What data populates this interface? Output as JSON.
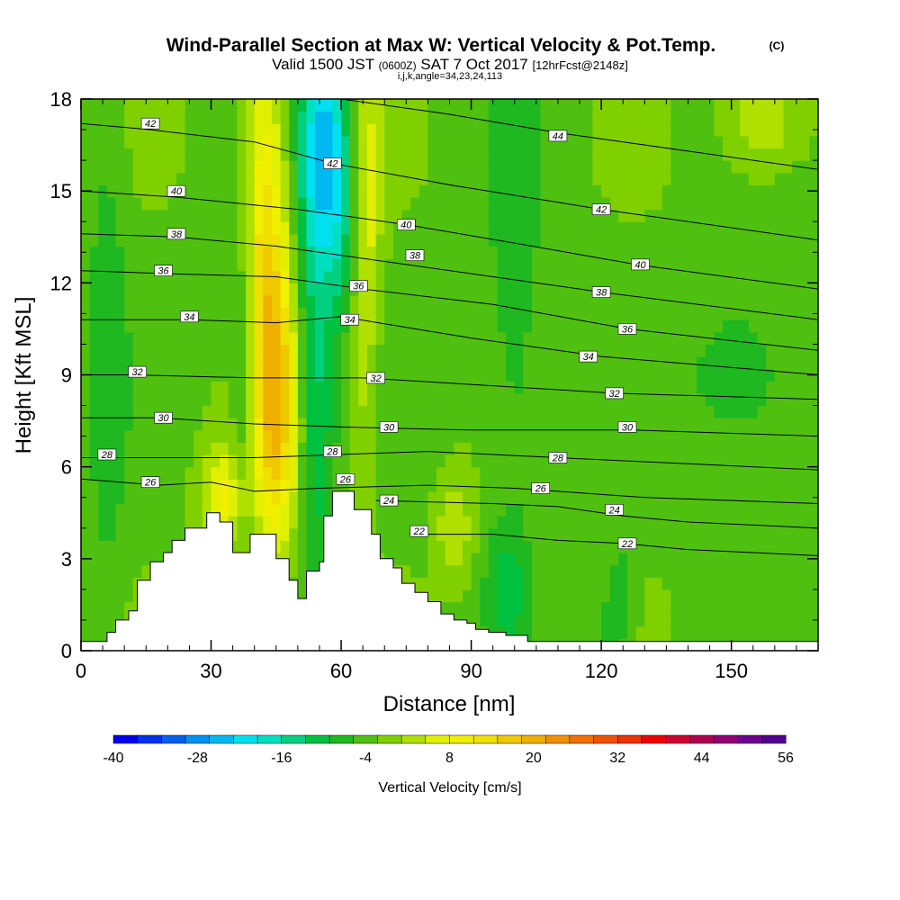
{
  "chart_data": {
    "type": "heatmap",
    "title": "Wind-Parallel Section at Max W: Vertical Velocity & Pot.Temp.",
    "copyright": "(C)",
    "subtitle": {
      "valid": "Valid 1500 JST",
      "utc": "(0600Z)",
      "date": "SAT 7 Oct 2017",
      "forecast": "[12hrFcst@2148z]"
    },
    "params": "i,j,k,angle=34,23,24,113",
    "xlabel": "Distance [nm]",
    "ylabel": "Height [Kft MSL]",
    "xlim": [
      0,
      170
    ],
    "ylim": [
      0,
      18
    ],
    "xticks": [
      0,
      30,
      60,
      90,
      120,
      150
    ],
    "yticks": [
      0,
      3,
      6,
      9,
      12,
      15,
      18
    ],
    "colorbar": {
      "label": "Vertical Velocity [cm/s]",
      "ticks": [
        -40,
        -28,
        -16,
        -4,
        8,
        20,
        32,
        44,
        56
      ],
      "min": -40,
      "max": 56,
      "step": 4,
      "colors": [
        "#0000f0",
        "#0030f0",
        "#0060f0",
        "#0090f0",
        "#00b8f0",
        "#00e0f0",
        "#00e0c0",
        "#00d080",
        "#00c040",
        "#20b820",
        "#50c010",
        "#80d000",
        "#b0e000",
        "#e0f000",
        "#f0f000",
        "#f0e000",
        "#f0c800",
        "#f0b000",
        "#f09000",
        "#f07000",
        "#f05000",
        "#f03000",
        "#f00000",
        "#d00030",
        "#b00050",
        "#900070",
        "#700090",
        "#500090"
      ]
    },
    "terrain": {
      "x": [
        0,
        6,
        6,
        8,
        8,
        11,
        11,
        13,
        13,
        16,
        16,
        19,
        19,
        21,
        21,
        24,
        24,
        29,
        29,
        32,
        32,
        35,
        35,
        39,
        39,
        45,
        45,
        48,
        48,
        50,
        50,
        52,
        52,
        55,
        55,
        56,
        56,
        58,
        58,
        63,
        63,
        67,
        67,
        69,
        69,
        72,
        72,
        74,
        74,
        77,
        77,
        80,
        80,
        83,
        83,
        86,
        86,
        89,
        89,
        91,
        91,
        94,
        94,
        98,
        98,
        103,
        103,
        106,
        106,
        170
      ],
      "y": [
        0.3,
        0.3,
        0.6,
        0.6,
        1.0,
        1.0,
        1.3,
        1.3,
        2.3,
        2.3,
        2.9,
        2.9,
        3.2,
        3.2,
        3.6,
        3.6,
        4.0,
        4.0,
        4.5,
        4.5,
        4.2,
        4.2,
        3.2,
        3.2,
        3.8,
        3.8,
        3.0,
        3.0,
        2.3,
        2.3,
        1.7,
        1.7,
        2.6,
        2.6,
        2.9,
        2.9,
        4.4,
        4.4,
        5.2,
        5.2,
        4.6,
        4.6,
        3.8,
        3.8,
        3.0,
        3.0,
        2.7,
        2.7,
        2.2,
        2.2,
        1.9,
        1.9,
        1.6,
        1.6,
        1.2,
        1.2,
        1.0,
        1.0,
        0.9,
        0.9,
        0.7,
        0.7,
        0.6,
        0.6,
        0.5,
        0.5,
        0.3,
        0.3,
        0.3,
        0.3
      ]
    },
    "w_features": [
      {
        "x": 42,
        "y": 12.5,
        "sx": 4,
        "sy": 5.5,
        "amp": 22
      },
      {
        "x": 46,
        "y": 7.5,
        "sx": 3.5,
        "sy": 3,
        "amp": 16
      },
      {
        "x": 33,
        "y": 5.0,
        "sx": 4,
        "sy": 1.3,
        "amp": 14
      },
      {
        "x": 66,
        "y": 15.5,
        "sx": 2.5,
        "sy": 3,
        "amp": 10
      },
      {
        "x": 65,
        "y": 9.5,
        "sx": 2.5,
        "sy": 3,
        "amp": 7
      },
      {
        "x": 86,
        "y": 4.0,
        "sx": 3,
        "sy": 1.2,
        "amp": 9
      },
      {
        "x": 121,
        "y": 2.0,
        "sx": 2,
        "sy": 1.2,
        "amp": 12
      },
      {
        "x": 157,
        "y": 17.3,
        "sx": 6,
        "sy": 1.2,
        "amp": 10
      },
      {
        "x": 56,
        "y": 16.5,
        "sx": 4,
        "sy": 2.5,
        "amp": -22
      },
      {
        "x": 54,
        "y": 9.0,
        "sx": 3,
        "sy": 5,
        "amp": -12
      },
      {
        "x": 38,
        "y": 9.5,
        "sx": 2.5,
        "sy": 5,
        "amp": -12
      },
      {
        "x": 60,
        "y": 13.5,
        "sx": 3,
        "sy": 2.5,
        "amp": -8
      },
      {
        "x": 152,
        "y": 9.0,
        "sx": 7,
        "sy": 1.5,
        "amp": -8
      },
      {
        "x": 122,
        "y": 1.6,
        "sx": 3,
        "sy": 1.3,
        "amp": -16
      },
      {
        "x": 98,
        "y": 2.0,
        "sx": 3,
        "sy": 1.3,
        "amp": -8
      },
      {
        "x": 6,
        "y": 10,
        "sx": 3,
        "sy": 6,
        "amp": -6
      },
      {
        "x": 100,
        "y": 12,
        "sx": 4,
        "sy": 6,
        "amp": -6
      }
    ],
    "isentropes": {
      "levels": [
        22,
        24,
        26,
        28,
        30,
        32,
        34,
        36,
        38,
        40,
        42,
        44
      ],
      "lines": [
        {
          "level": 22,
          "points": [
            [
              78,
              3.8
            ],
            [
              95,
              3.8
            ],
            [
              110,
              3.6
            ],
            [
              125,
              3.5
            ],
            [
              140,
              3.3
            ],
            [
              170,
              3.1
            ]
          ]
        },
        {
          "level": 24,
          "points": [
            [
              68,
              4.9
            ],
            [
              95,
              4.8
            ],
            [
              110,
              4.7
            ],
            [
              125,
              4.4
            ],
            [
              140,
              4.2
            ],
            [
              170,
              4.0
            ]
          ]
        },
        {
          "level": 26,
          "points": [
            [
              0,
              5.6
            ],
            [
              18,
              5.4
            ],
            [
              30,
              5.5
            ],
            [
              40,
              5.2
            ],
            [
              55,
              5.3
            ],
            [
              80,
              5.4
            ],
            [
              100,
              5.3
            ],
            [
              130,
              5.0
            ],
            [
              170,
              4.8
            ]
          ]
        },
        {
          "level": 28,
          "points": [
            [
              0,
              6.3
            ],
            [
              20,
              6.3
            ],
            [
              40,
              6.3
            ],
            [
              60,
              6.4
            ],
            [
              80,
              6.5
            ],
            [
              110,
              6.3
            ],
            [
              140,
              6.1
            ],
            [
              170,
              5.9
            ]
          ]
        },
        {
          "level": 30,
          "points": [
            [
              0,
              7.6
            ],
            [
              18,
              7.6
            ],
            [
              40,
              7.4
            ],
            [
              60,
              7.3
            ],
            [
              90,
              7.2
            ],
            [
              127,
              7.2
            ],
            [
              170,
              7.0
            ]
          ]
        },
        {
          "level": 32,
          "points": [
            [
              0,
              9.0
            ],
            [
              12,
              9.0
            ],
            [
              40,
              8.9
            ],
            [
              65,
              8.9
            ],
            [
              100,
              8.6
            ],
            [
              123,
              8.4
            ],
            [
              170,
              8.2
            ]
          ]
        },
        {
          "level": 34,
          "points": [
            [
              0,
              10.8
            ],
            [
              25,
              10.8
            ],
            [
              45,
              10.7
            ],
            [
              60,
              10.9
            ],
            [
              90,
              10.2
            ],
            [
              120,
              9.6
            ],
            [
              170,
              9.0
            ]
          ]
        },
        {
          "level": 36,
          "points": [
            [
              0,
              12.4
            ],
            [
              20,
              12.3
            ],
            [
              45,
              12.2
            ],
            [
              65,
              11.8
            ],
            [
              95,
              11.3
            ],
            [
              126,
              10.5
            ],
            [
              170,
              9.8
            ]
          ]
        },
        {
          "level": 38,
          "points": [
            [
              0,
              13.6
            ],
            [
              22,
              13.5
            ],
            [
              45,
              13.2
            ],
            [
              70,
              12.7
            ],
            [
              95,
              12.2
            ],
            [
              120,
              11.7
            ],
            [
              170,
              10.8
            ]
          ]
        },
        {
          "level": 40,
          "points": [
            [
              0,
              15.0
            ],
            [
              22,
              14.8
            ],
            [
              50,
              14.4
            ],
            [
              75,
              13.9
            ],
            [
              100,
              13.3
            ],
            [
              128,
              12.6
            ],
            [
              170,
              11.8
            ]
          ]
        },
        {
          "level": 42,
          "points": [
            [
              0,
              17.2
            ],
            [
              16,
              17.0
            ],
            [
              40,
              16.6
            ],
            [
              58,
              15.9
            ],
            [
              85,
              15.2
            ],
            [
              120,
              14.4
            ],
            [
              170,
              13.4
            ]
          ]
        },
        {
          "level": 44,
          "points": [
            [
              60,
              18.0
            ],
            [
              85,
              17.5
            ],
            [
              110,
              16.9
            ],
            [
              140,
              16.3
            ],
            [
              170,
              15.7
            ]
          ]
        }
      ],
      "labels": [
        {
          "text": "42",
          "x": 16,
          "y": 17.2
        },
        {
          "text": "42",
          "x": 58,
          "y": 15.9
        },
        {
          "text": "44",
          "x": 110,
          "y": 16.8
        },
        {
          "text": "40",
          "x": 22,
          "y": 15.0
        },
        {
          "text": "42",
          "x": 120,
          "y": 14.4
        },
        {
          "text": "38",
          "x": 22,
          "y": 13.6
        },
        {
          "text": "40",
          "x": 75,
          "y": 13.9
        },
        {
          "text": "38",
          "x": 77,
          "y": 12.9
        },
        {
          "text": "36",
          "x": 19,
          "y": 12.4
        },
        {
          "text": "40",
          "x": 129,
          "y": 12.6
        },
        {
          "text": "36",
          "x": 64,
          "y": 11.9
        },
        {
          "text": "38",
          "x": 120,
          "y": 11.7
        },
        {
          "text": "34",
          "x": 25,
          "y": 10.9
        },
        {
          "text": "34",
          "x": 62,
          "y": 10.8
        },
        {
          "text": "36",
          "x": 126,
          "y": 10.5
        },
        {
          "text": "34",
          "x": 117,
          "y": 9.6
        },
        {
          "text": "32",
          "x": 13,
          "y": 9.1
        },
        {
          "text": "32",
          "x": 68,
          "y": 8.9
        },
        {
          "text": "32",
          "x": 123,
          "y": 8.4
        },
        {
          "text": "30",
          "x": 19,
          "y": 7.6
        },
        {
          "text": "30",
          "x": 71,
          "y": 7.3
        },
        {
          "text": "30",
          "x": 126,
          "y": 7.3
        },
        {
          "text": "28",
          "x": 6,
          "y": 6.4
        },
        {
          "text": "28",
          "x": 58,
          "y": 6.5
        },
        {
          "text": "28",
          "x": 110,
          "y": 6.3
        },
        {
          "text": "26",
          "x": 16,
          "y": 5.5
        },
        {
          "text": "26",
          "x": 61,
          "y": 5.6
        },
        {
          "text": "26",
          "x": 106,
          "y": 5.3
        },
        {
          "text": "24",
          "x": 71,
          "y": 4.9
        },
        {
          "text": "24",
          "x": 123,
          "y": 4.6
        },
        {
          "text": "22",
          "x": 78,
          "y": 3.9
        },
        {
          "text": "22",
          "x": 126,
          "y": 3.5
        }
      ]
    }
  }
}
